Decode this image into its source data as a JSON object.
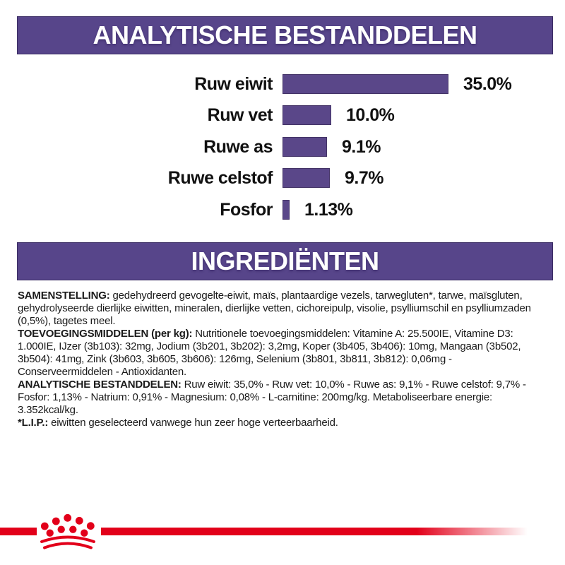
{
  "colors": {
    "banner_purple": "#57458A",
    "banner_border": "#3A2C63",
    "bar_purple": "#5A4789",
    "bar_border": "#443467",
    "accent_red": "#E2001A",
    "text_black": "#1A1A1A",
    "background": "#FFFFFF"
  },
  "banners": {
    "analytical": "ANALYTISCHE BESTANDDELEN",
    "ingredients": "INGREDIËNTEN"
  },
  "chart_data": {
    "type": "bar",
    "orientation": "horizontal",
    "title": "ANALYTISCHE BESTANDDELEN",
    "categories": [
      "Ruw eiwit",
      "Ruw vet",
      "Ruwe as",
      "Ruwe celstof",
      "Fosfor"
    ],
    "values": [
      35.0,
      10.0,
      9.1,
      9.7,
      1.13
    ],
    "value_labels": [
      "35.0%",
      "10.0%",
      "9.1%",
      "9.7%",
      "1.13%"
    ],
    "xlim": [
      0,
      35
    ],
    "grid": false,
    "legend": false,
    "bar_color": "#5A4789"
  },
  "ingredients_section": {
    "title": "INGREDIËNTEN",
    "paragraphs": [
      {
        "label": "SAMENSTELLING:",
        "text": "gedehydreerd gevogelte-eiwit, maïs, plantaardige vezels, tarwegluten*, tarwe, maïsgluten, gehydrolyseerde dierlijke eiwitten, mineralen, dierlijke vetten, cichoreipulp, visolie, psylliumschil en psylliumzaden (0,5%), tagetes meel."
      },
      {
        "label": "TOEVOEGINGSMIDDELEN (per kg):",
        "text": "Nutritionele toevoegingsmiddelen: Vitamine A: 25.500IE, Vitamine D3: 1.000IE, IJzer (3b103): 32mg, Jodium (3b201, 3b202): 3,2mg, Koper (3b405, 3b406): 10mg, Mangaan (3b502, 3b504): 41mg, Zink (3b603, 3b605, 3b606): 126mg, Selenium (3b801, 3b811, 3b812): 0,06mg - Conserveermiddelen - Antioxidanten."
      },
      {
        "label": "ANALYTISCHE BESTANDDELEN:",
        "text": "Ruw eiwit: 35,0% - Ruw vet: 10,0% - Ruwe as: 9,1% - Ruwe celstof: 9,7% - Fosfor: 1,13% - Natrium: 0,91% - Magnesium: 0,08% - L-carnitine: 200mg/kg. Metaboliseerbare energie: 3.352kcal/kg."
      },
      {
        "label": "*L.I.P.:",
        "text": "eiwitten geselecteerd vanwege hun zeer hoge verteerbaarheid."
      }
    ]
  },
  "footer": {
    "logo": "royal-canin-crown-icon"
  }
}
